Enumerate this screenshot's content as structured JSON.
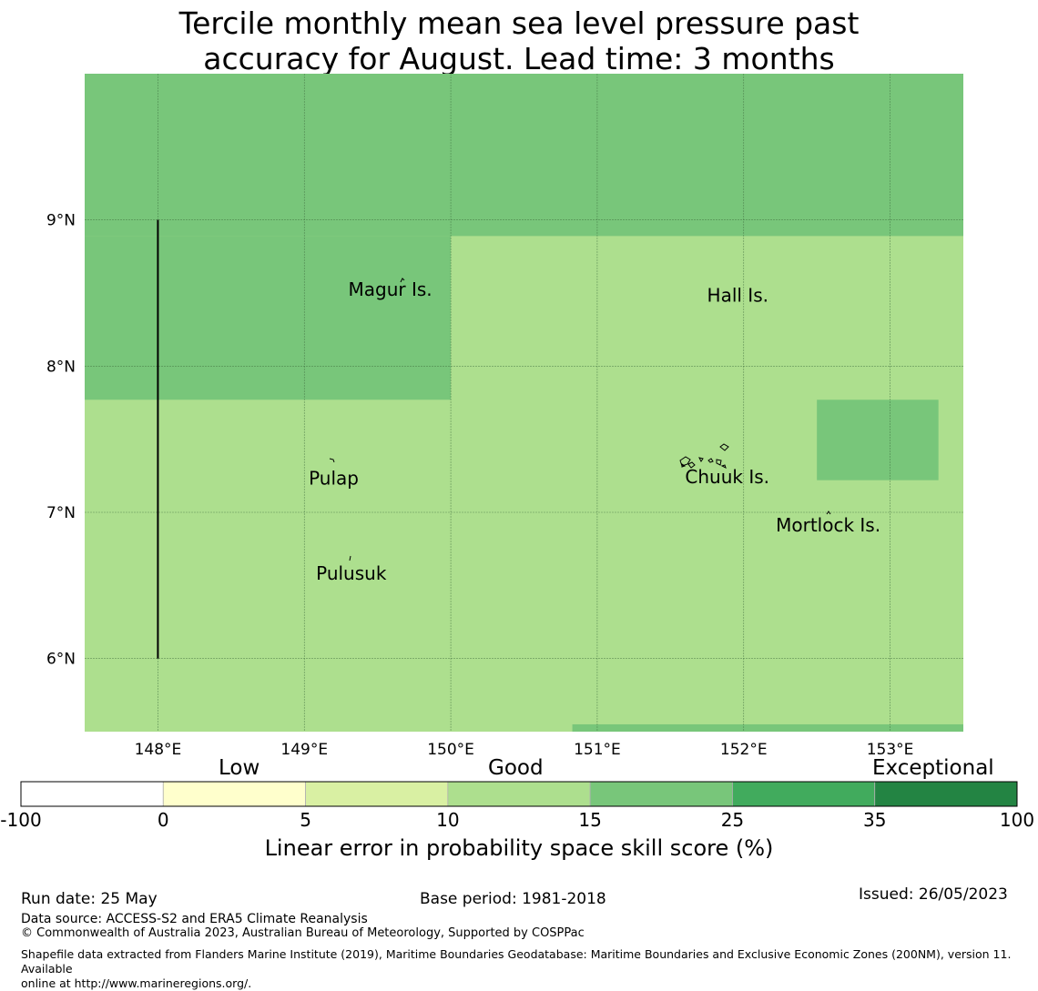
{
  "title": {
    "line1": "Tercile monthly mean sea level pressure past",
    "line2": "accuracy for August. Lead time: 3 months"
  },
  "map": {
    "lon_range": [
      147.5,
      153.5
    ],
    "lat_range": [
      5.5,
      10.0
    ],
    "x_ticks": [
      {
        "value": 148,
        "label": "148°E"
      },
      {
        "value": 149,
        "label": "149°E"
      },
      {
        "value": 150,
        "label": "150°E"
      },
      {
        "value": 151,
        "label": "151°E"
      },
      {
        "value": 152,
        "label": "152°E"
      },
      {
        "value": 153,
        "label": "153°E"
      }
    ],
    "y_ticks": [
      {
        "value": 9,
        "label": "9°N"
      },
      {
        "value": 8,
        "label": "8°N"
      },
      {
        "value": 7,
        "label": "7°N"
      },
      {
        "value": 6,
        "label": "6°N"
      }
    ],
    "boundary_line": {
      "lon": 148.0,
      "lat_from": 6.0,
      "lat_to": 9.0
    },
    "cells": [
      {
        "lon": [
          147.5,
          153.5
        ],
        "lat": [
          5.5,
          10.0
        ],
        "category": "10 to 15",
        "color": "#addf8e"
      },
      {
        "lon": [
          147.5,
          153.5
        ],
        "lat": [
          8.89,
          10.0
        ],
        "category": "15 to 25",
        "color": "#78c67a"
      },
      {
        "lon": [
          147.5,
          150.0
        ],
        "lat": [
          7.77,
          8.89
        ],
        "category": "15 to 25",
        "color": "#78c67a"
      },
      {
        "lon": [
          152.5,
          153.33
        ],
        "lat": [
          7.22,
          7.77
        ],
        "category": "15 to 25",
        "color": "#78c67a"
      },
      {
        "lon": [
          150.83,
          153.5
        ],
        "lat": [
          5.5,
          5.55
        ],
        "category": "15 to 25",
        "color": "#78c67a"
      }
    ],
    "places": [
      {
        "name": "Magur Is.",
        "lon": 149.3,
        "lat": 8.48
      },
      {
        "name": "Hall Is.",
        "lon": 151.75,
        "lat": 8.44
      },
      {
        "name": "Pulap",
        "lon": 149.03,
        "lat": 7.19
      },
      {
        "name": "Chuuk Is.",
        "lon": 151.6,
        "lat": 7.2
      },
      {
        "name": "Mortlock Is.",
        "lon": 152.22,
        "lat": 6.87
      },
      {
        "name": "Pulusuk",
        "lon": 149.08,
        "lat": 6.54
      }
    ]
  },
  "colorbar": {
    "categories": [
      "Low",
      "Good",
      "Exceptional"
    ],
    "bins": [
      {
        "from": -100,
        "to": 0,
        "color": "#ffffff"
      },
      {
        "from": 0,
        "to": 5,
        "color": "#ffffcc"
      },
      {
        "from": 5,
        "to": 10,
        "color": "#d9f0a3"
      },
      {
        "from": 10,
        "to": 15,
        "color": "#addf8e"
      },
      {
        "from": 15,
        "to": 25,
        "color": "#78c67a"
      },
      {
        "from": 25,
        "to": 35,
        "color": "#41ab5d"
      },
      {
        "from": 35,
        "to": 100,
        "color": "#238443"
      }
    ],
    "tick_labels": [
      "-100",
      "0",
      "5",
      "10",
      "15",
      "25",
      "35",
      "100"
    ],
    "label": "Linear error in probability space skill score (%)"
  },
  "footer": {
    "run_date": "Run date: 25 May",
    "base_period": "Base period: 1981-2018",
    "issued": "Issued: 26/05/2023",
    "data_source": "Data source: ACCESS-S2 and ERA5 Climate Reanalysis",
    "copyright": "© Commonwealth of Australia 2023, Australian Bureau of Meteorology, Supported by COSPPac",
    "shapefile_line1": "Shapefile data extracted from Flanders Marine Institute (2019), Maritime Boundaries Geodatabase: Maritime Boundaries and Exclusive Economic Zones (200NM), version 11. Available",
    "shapefile_line2": "online at http://www.marineregions.org/."
  }
}
